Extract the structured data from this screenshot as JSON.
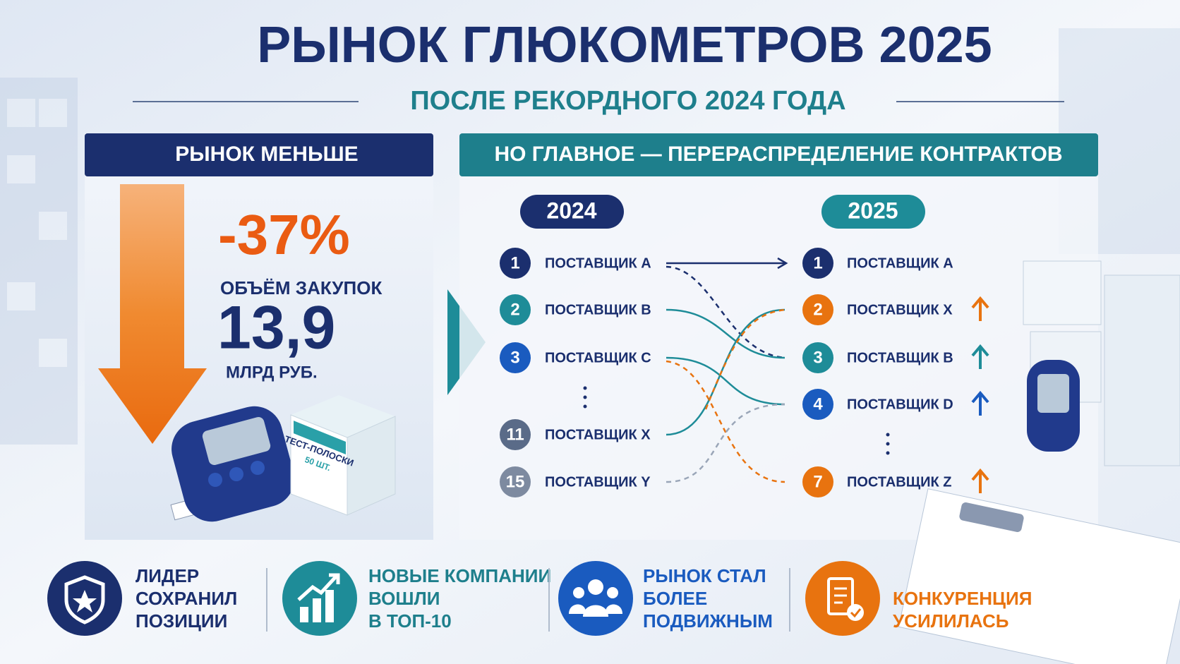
{
  "title": "РЫНОК ГЛЮКОМЕТРОВ 2025",
  "subtitle": "ПОСЛЕ РЕКОРДНОГО 2024 ГОДА",
  "left_panel": {
    "header": "РЫНОК МЕНЬШЕ",
    "change": "-37%",
    "metric": "ОБЪЁМ ЗАКУПОК",
    "value": "13,9",
    "unit": "МЛРД РУБ.",
    "product_label": "ТЕСТ-ПОЛОСКИ",
    "product_count": "50 ШТ."
  },
  "right_panel": {
    "header": "НО ГЛАВНОЕ — ПЕРЕРАСПРЕДЕЛЕНИЕ КОНТРАКТОВ",
    "year_before": "2024",
    "year_after": "2025",
    "before": [
      {
        "rank": "1",
        "name": "ПОСТАВЩИК A"
      },
      {
        "rank": "2",
        "name": "ПОСТАВЩИК B"
      },
      {
        "rank": "3",
        "name": "ПОСТАВЩИК C"
      },
      {
        "rank": "11",
        "name": "ПОСТАВЩИК X"
      },
      {
        "rank": "15",
        "name": "ПОСТАВЩИК Y"
      }
    ],
    "after": [
      {
        "rank": "1",
        "name": "ПОСТАВЩИК A"
      },
      {
        "rank": "2",
        "name": "ПОСТАВЩИК X"
      },
      {
        "rank": "3",
        "name": "ПОСТАВЩИК B"
      },
      {
        "rank": "4",
        "name": "ПОСТАВЩИК D"
      },
      {
        "rank": "7",
        "name": "ПОСТАВЩИК Z"
      }
    ]
  },
  "features": [
    {
      "lines": [
        "ЛИДЕР",
        "СОХРАНИЛ",
        "ПОЗИЦИИ"
      ]
    },
    {
      "lines": [
        "НОВЫЕ КОМПАНИИ",
        "ВОШЛИ",
        "В ТОП-10"
      ]
    },
    {
      "lines": [
        "РЫНОК СТАЛ",
        "БОЛЕЕ",
        "ПОДВИЖНЫМ"
      ]
    },
    {
      "lines": [
        "КОНКУРЕНЦИЯ",
        "УСИЛИЛАСЬ"
      ]
    }
  ]
}
